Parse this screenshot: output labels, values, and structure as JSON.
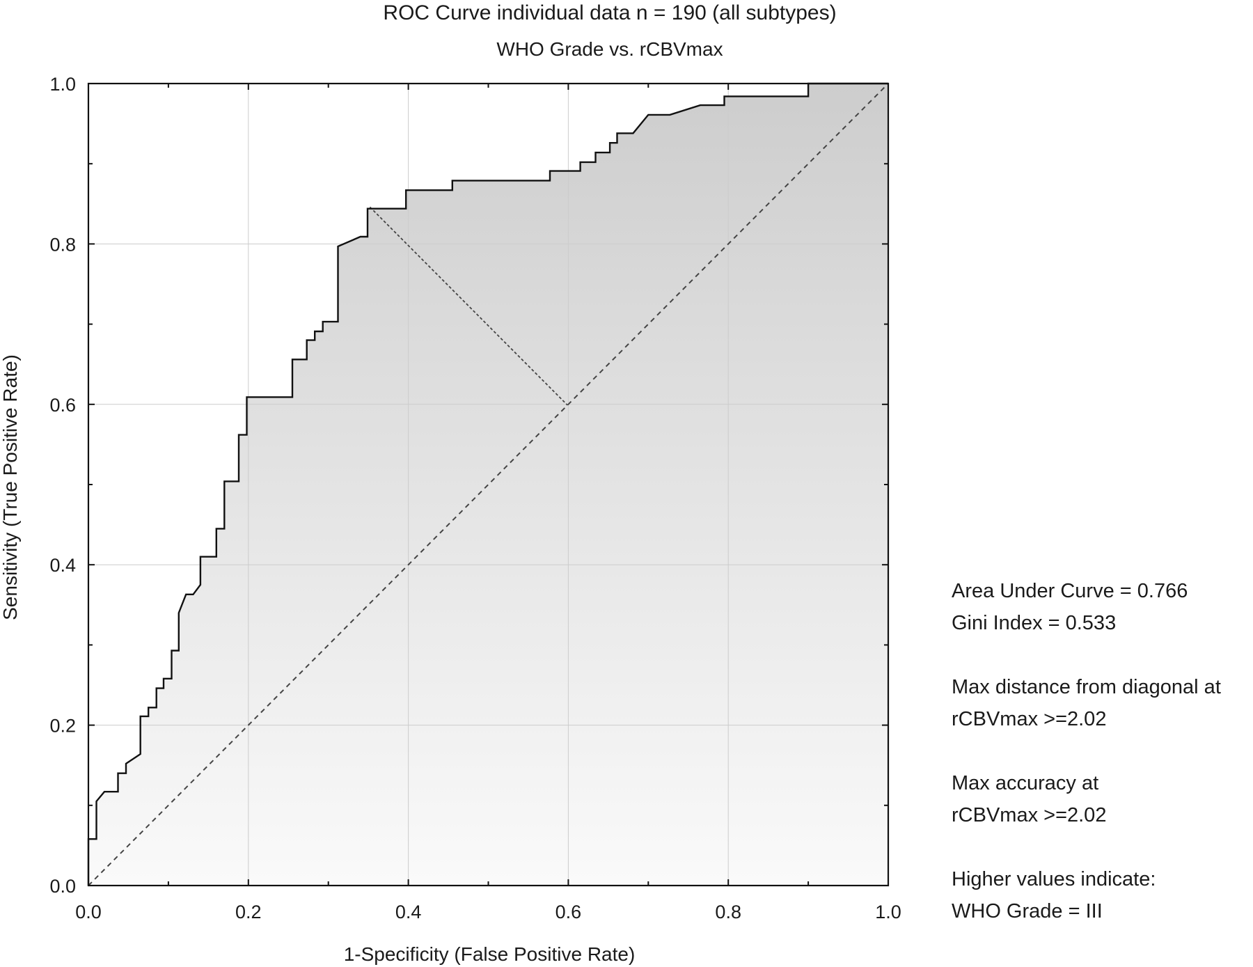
{
  "chart_data": {
    "type": "line",
    "title": "ROC Curve individual data n = 190 (all subtypes)",
    "subtitle": "WHO Grade vs. rCBVmax",
    "xlabel": "1-Specificity (False Positive Rate)",
    "ylabel": "Sensitivity (True Positive Rate)",
    "xlim": [
      0.0,
      1.0
    ],
    "ylim": [
      0.0,
      1.0
    ],
    "x_ticks": [
      "0.0",
      "0.2",
      "0.4",
      "0.6",
      "0.8",
      "1.0"
    ],
    "y_ticks": [
      "0.0",
      "0.2",
      "0.4",
      "0.6",
      "0.8",
      "1.0"
    ],
    "grid": true,
    "series": [
      {
        "role": "roc-curve",
        "points": [
          [
            0.0,
            0.0
          ],
          [
            0.0,
            0.058
          ],
          [
            0.01,
            0.058
          ],
          [
            0.01,
            0.105
          ],
          [
            0.02,
            0.117
          ],
          [
            0.037,
            0.117
          ],
          [
            0.037,
            0.14
          ],
          [
            0.047,
            0.14
          ],
          [
            0.047,
            0.152
          ],
          [
            0.065,
            0.164
          ],
          [
            0.065,
            0.211
          ],
          [
            0.075,
            0.211
          ],
          [
            0.075,
            0.222
          ],
          [
            0.085,
            0.222
          ],
          [
            0.085,
            0.246
          ],
          [
            0.094,
            0.246
          ],
          [
            0.094,
            0.258
          ],
          [
            0.104,
            0.258
          ],
          [
            0.104,
            0.293
          ],
          [
            0.113,
            0.293
          ],
          [
            0.113,
            0.34
          ],
          [
            0.122,
            0.363
          ],
          [
            0.131,
            0.363
          ],
          [
            0.14,
            0.375
          ],
          [
            0.14,
            0.41
          ],
          [
            0.16,
            0.41
          ],
          [
            0.16,
            0.445
          ],
          [
            0.17,
            0.445
          ],
          [
            0.17,
            0.504
          ],
          [
            0.188,
            0.504
          ],
          [
            0.188,
            0.562
          ],
          [
            0.198,
            0.562
          ],
          [
            0.198,
            0.609
          ],
          [
            0.255,
            0.609
          ],
          [
            0.255,
            0.656
          ],
          [
            0.273,
            0.656
          ],
          [
            0.273,
            0.68
          ],
          [
            0.283,
            0.68
          ],
          [
            0.283,
            0.691
          ],
          [
            0.293,
            0.691
          ],
          [
            0.293,
            0.703
          ],
          [
            0.312,
            0.703
          ],
          [
            0.312,
            0.797
          ],
          [
            0.34,
            0.809
          ],
          [
            0.349,
            0.809
          ],
          [
            0.349,
            0.844
          ],
          [
            0.397,
            0.844
          ],
          [
            0.397,
            0.867
          ],
          [
            0.455,
            0.867
          ],
          [
            0.455,
            0.879
          ],
          [
            0.577,
            0.879
          ],
          [
            0.577,
            0.891
          ],
          [
            0.615,
            0.891
          ],
          [
            0.615,
            0.902
          ],
          [
            0.634,
            0.902
          ],
          [
            0.634,
            0.914
          ],
          [
            0.652,
            0.914
          ],
          [
            0.652,
            0.926
          ],
          [
            0.661,
            0.926
          ],
          [
            0.661,
            0.938
          ],
          [
            0.681,
            0.938
          ],
          [
            0.7,
            0.961
          ],
          [
            0.727,
            0.961
          ],
          [
            0.765,
            0.973
          ],
          [
            0.795,
            0.973
          ],
          [
            0.795,
            0.984
          ],
          [
            0.9,
            0.984
          ],
          [
            0.9,
            1.0
          ],
          [
            1.0,
            1.0
          ]
        ]
      },
      {
        "role": "diagonal",
        "points": [
          [
            0.0,
            0.0
          ],
          [
            1.0,
            1.0
          ]
        ]
      },
      {
        "role": "max-distance-line",
        "points": [
          [
            0.352,
            0.846
          ],
          [
            0.599,
            0.599
          ]
        ]
      }
    ],
    "annotations": {
      "auc": "Area Under Curve = 0.766",
      "gini": "Gini Index = 0.533",
      "max_dist_1": "Max distance from diagonal at",
      "max_dist_2": "rCBVmax >=2.02",
      "max_acc_1": "Max accuracy at",
      "max_acc_2": "rCBVmax >=2.02",
      "higher_1": "Higher values indicate:",
      "higher_2": "WHO Grade = III"
    },
    "colors": {
      "line": "#111111",
      "grid": "#cccccc",
      "fill_top": "#cdcdcd",
      "fill_bottom": "#fafafa"
    }
  }
}
